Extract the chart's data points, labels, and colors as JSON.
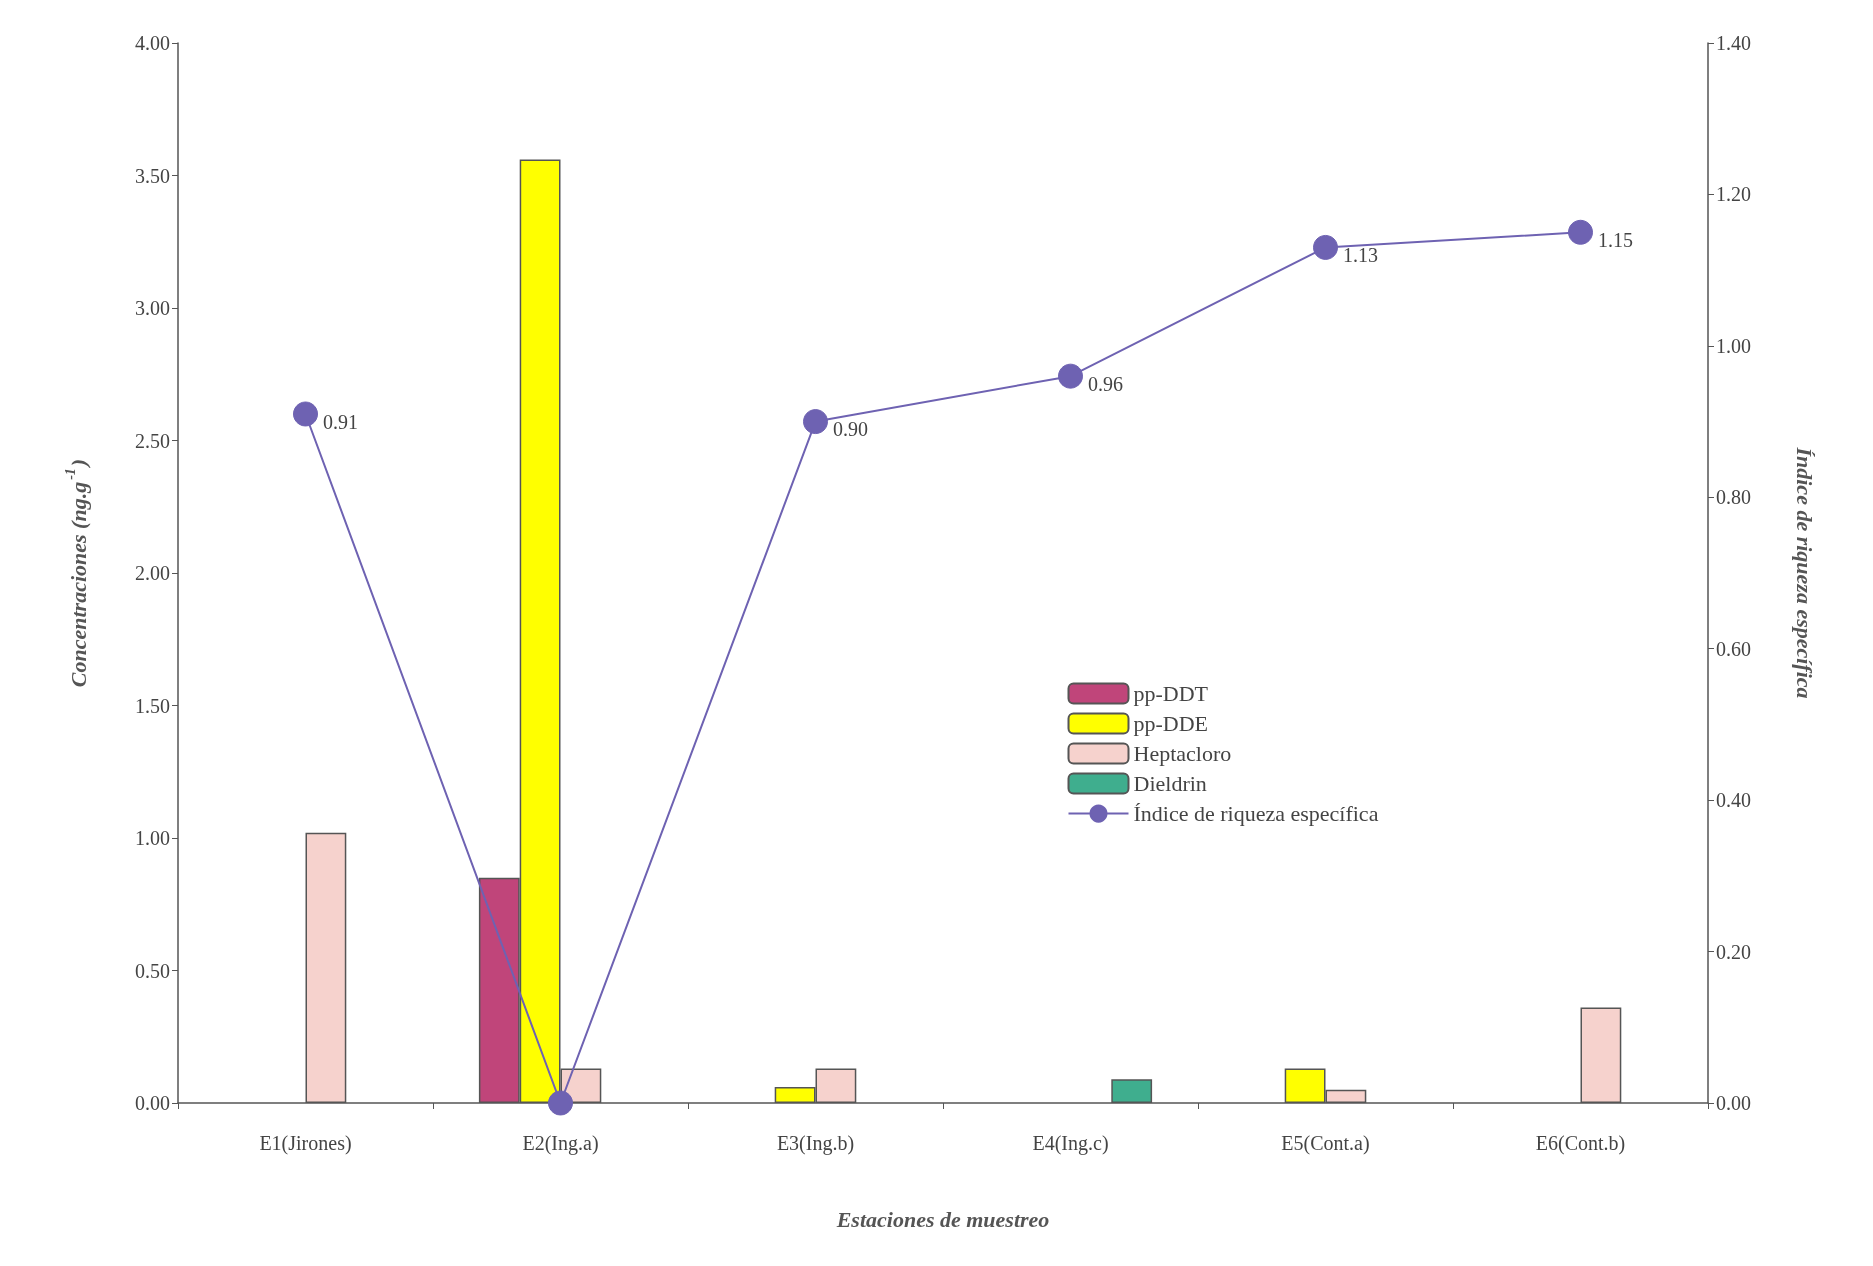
{
  "chart_data": {
    "type": "bar",
    "categories": [
      "E1(Jirones)",
      "E2(Ing.a)",
      "E3(Ing.b)",
      "E4(Ing.c)",
      "E5(Cont.a)",
      "E6(Cont.b)"
    ],
    "series": [
      {
        "name": "pp-DDT",
        "color": "#c0457a",
        "values": [
          null,
          0.85,
          null,
          null,
          null,
          null
        ]
      },
      {
        "name": "pp-DDE",
        "color": "#ffff00",
        "values": [
          null,
          3.56,
          0.06,
          null,
          0.13,
          null
        ]
      },
      {
        "name": "Heptacloro",
        "color": "#f6d2cd",
        "values": [
          1.02,
          0.13,
          0.13,
          null,
          0.05,
          0.36
        ]
      },
      {
        "name": "Dieldrin",
        "color": "#3fae8e",
        "values": [
          null,
          null,
          null,
          0.09,
          null,
          null
        ]
      },
      {
        "name": "Índice de riqueza específica",
        "type": "line",
        "axis": "y2",
        "color": "#6e62b2",
        "values": [
          0.91,
          0,
          0.9,
          0.96,
          1.13,
          1.15
        ],
        "value_labels": [
          "0.91",
          null,
          "0.90",
          "0.96",
          "1.13",
          "1.15"
        ]
      }
    ],
    "xlabel": "Estaciones de muestreo",
    "ylabel": "Concentraciones (ng.g$^{-1}$)",
    "y2label": "Índice de riqueza específica",
    "ylim": [
      0,
      4
    ],
    "yticks": [
      {
        "value": 0,
        "label": "0.00"
      },
      {
        "value": 0.5,
        "label": "0.50"
      },
      {
        "value": 1,
        "label": "1.00"
      },
      {
        "value": 1.5,
        "label": "1.50"
      },
      {
        "value": 2,
        "label": "2.00"
      },
      {
        "value": 2.5,
        "label": "2.50"
      },
      {
        "value": 3,
        "label": "3.00"
      },
      {
        "value": 3.5,
        "label": "3.50"
      },
      {
        "value": 4,
        "label": "4.00"
      }
    ],
    "y2lim": [
      0,
      1.4
    ],
    "y2ticks": [
      {
        "value": 0,
        "label": "0.00"
      },
      {
        "value": 0.2,
        "label": "0.20"
      },
      {
        "value": 0.4,
        "label": "0.40"
      },
      {
        "value": 0.6,
        "label": "0.60"
      },
      {
        "value": 0.8,
        "label": "0.80"
      },
      {
        "value": 1,
        "label": "1.00"
      },
      {
        "value": 1.2,
        "label": "1.20"
      },
      {
        "value": 1.4,
        "label": "1.40"
      }
    ],
    "grid": false,
    "legend": "right",
    "marker": "circle",
    "line_style": "solid"
  }
}
